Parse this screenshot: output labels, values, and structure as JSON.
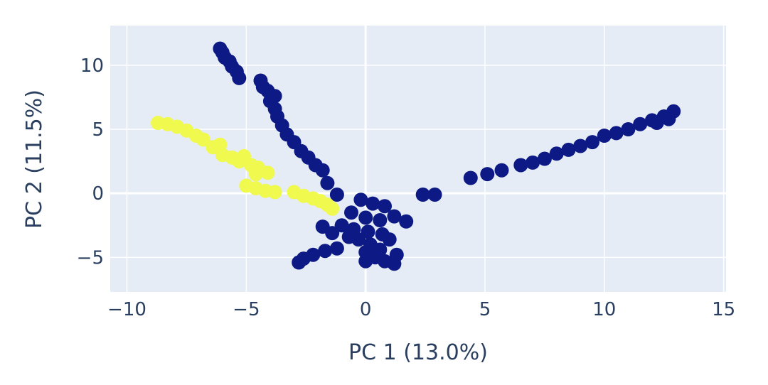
{
  "chart_data": {
    "type": "scatter",
    "title": "",
    "xlabel": "PC 1 (13.0%)",
    "ylabel": "PC 2 (11.5%)",
    "xlim": [
      -10.7,
      15.1
    ],
    "ylim": [
      -7.7,
      13.1
    ],
    "xticks": [
      -10,
      -5,
      0,
      5,
      10,
      15
    ],
    "xtick_labels": [
      "−10",
      "−5",
      "0",
      "5",
      "10",
      "15"
    ],
    "yticks": [
      -5,
      0,
      5,
      10
    ],
    "ytick_labels": [
      "−5",
      "0",
      "5",
      "10"
    ],
    "grid": true,
    "legend": "none",
    "background_color": "#e5ecf6",
    "series": [
      {
        "color": "#0d1a85",
        "points": [
          [
            -6.1,
            11.3
          ],
          [
            -6.0,
            11.0
          ],
          [
            -5.9,
            10.6
          ],
          [
            -5.7,
            10.3
          ],
          [
            -5.6,
            9.9
          ],
          [
            -5.4,
            9.5
          ],
          [
            -5.3,
            9.0
          ],
          [
            -4.4,
            8.8
          ],
          [
            -4.3,
            8.3
          ],
          [
            -4.1,
            8.0
          ],
          [
            -3.8,
            7.6
          ],
          [
            -4.0,
            7.2
          ],
          [
            -3.8,
            6.6
          ],
          [
            -3.7,
            6.0
          ],
          [
            -3.5,
            5.3
          ],
          [
            -3.3,
            4.6
          ],
          [
            -3.0,
            4.0
          ],
          [
            -2.7,
            3.3
          ],
          [
            -2.4,
            2.8
          ],
          [
            -2.1,
            2.2
          ],
          [
            -1.8,
            1.8
          ],
          [
            -1.6,
            0.8
          ],
          [
            -1.2,
            -0.1
          ],
          [
            2.4,
            -0.1
          ],
          [
            2.9,
            -0.1
          ],
          [
            4.4,
            1.2
          ],
          [
            5.1,
            1.5
          ],
          [
            5.7,
            1.8
          ],
          [
            6.5,
            2.2
          ],
          [
            7.0,
            2.4
          ],
          [
            7.5,
            2.7
          ],
          [
            8.0,
            3.1
          ],
          [
            8.5,
            3.4
          ],
          [
            9.0,
            3.7
          ],
          [
            9.5,
            4.0
          ],
          [
            10.0,
            4.5
          ],
          [
            10.5,
            4.7
          ],
          [
            11.0,
            5.0
          ],
          [
            11.5,
            5.4
          ],
          [
            12.0,
            5.7
          ],
          [
            12.5,
            6.0
          ],
          [
            12.9,
            6.4
          ],
          [
            12.7,
            5.8
          ],
          [
            12.2,
            5.5
          ],
          [
            -0.2,
            -0.5
          ],
          [
            0.3,
            -0.8
          ],
          [
            0.8,
            -1.0
          ],
          [
            -0.6,
            -1.5
          ],
          [
            0.0,
            -1.9
          ],
          [
            0.6,
            -2.1
          ],
          [
            1.2,
            -1.8
          ],
          [
            1.7,
            -2.2
          ],
          [
            -1.0,
            -2.5
          ],
          [
            -0.5,
            -2.8
          ],
          [
            0.1,
            -3.0
          ],
          [
            0.7,
            -3.2
          ],
          [
            -1.4,
            -3.1
          ],
          [
            -1.8,
            -2.6
          ],
          [
            -0.3,
            -3.6
          ],
          [
            0.2,
            -4.0
          ],
          [
            -0.7,
            -3.4
          ],
          [
            1.0,
            -3.6
          ],
          [
            0.0,
            -4.6
          ],
          [
            0.4,
            -5.0
          ],
          [
            0.8,
            -5.3
          ],
          [
            1.2,
            -5.5
          ],
          [
            0.0,
            -5.3
          ],
          [
            1.3,
            -4.8
          ],
          [
            0.6,
            -4.4
          ],
          [
            -1.2,
            -4.3
          ],
          [
            -1.7,
            -4.5
          ],
          [
            -2.2,
            -4.8
          ],
          [
            -2.6,
            -5.1
          ],
          [
            -2.8,
            -5.4
          ]
        ]
      },
      {
        "color": "#f0f94e",
        "points": [
          [
            -8.7,
            5.5
          ],
          [
            -8.3,
            5.4
          ],
          [
            -7.9,
            5.2
          ],
          [
            -7.5,
            4.9
          ],
          [
            -7.1,
            4.5
          ],
          [
            -6.8,
            4.2
          ],
          [
            -6.4,
            3.6
          ],
          [
            -6.1,
            3.8
          ],
          [
            -6.0,
            3.0
          ],
          [
            -5.6,
            2.8
          ],
          [
            -5.3,
            2.5
          ],
          [
            -5.1,
            2.9
          ],
          [
            -4.8,
            2.2
          ],
          [
            -4.5,
            2.0
          ],
          [
            -4.1,
            1.6
          ],
          [
            -4.6,
            1.5
          ],
          [
            -5.0,
            0.6
          ],
          [
            -4.6,
            0.4
          ],
          [
            -4.2,
            0.2
          ],
          [
            -3.8,
            0.1
          ],
          [
            -3.0,
            0.1
          ],
          [
            -2.6,
            -0.2
          ],
          [
            -2.2,
            -0.4
          ],
          [
            -1.9,
            -0.6
          ],
          [
            -1.6,
            -0.9
          ],
          [
            -1.4,
            -1.2
          ]
        ]
      }
    ]
  }
}
